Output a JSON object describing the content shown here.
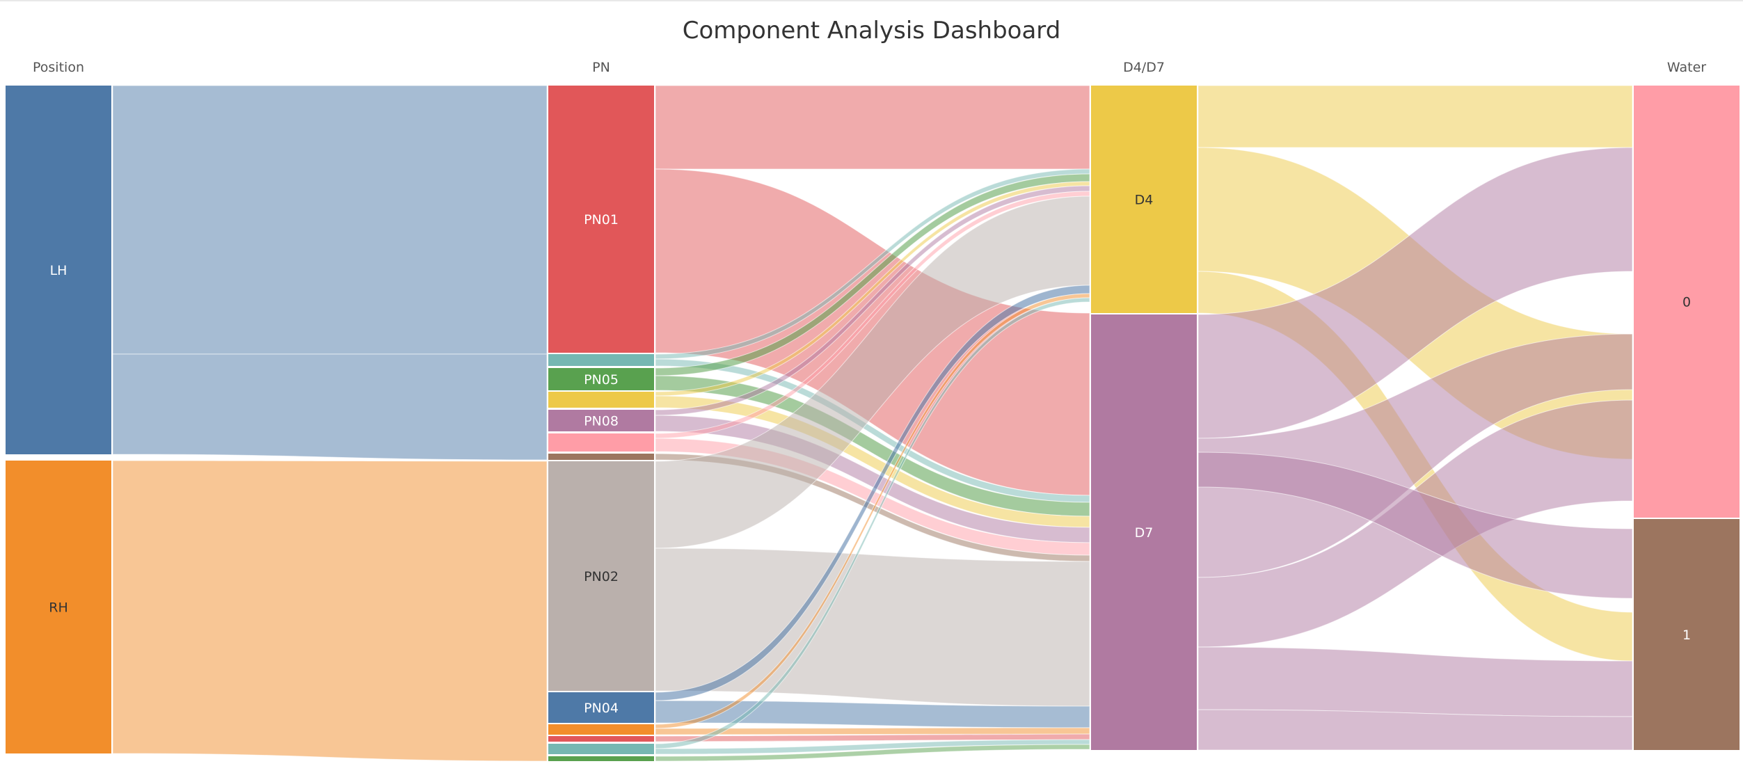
{
  "title": "Component Analysis Dashboard",
  "columns": [
    "Position",
    "PN",
    "D4/D7",
    "Water"
  ],
  "colors": {
    "LH": "#4e79a7",
    "RH": "#f28e2b",
    "PN01": "#e15759",
    "PN02": "#bab0ac",
    "PN04": "#4e79a7",
    "PN05": "#59a14f",
    "PN08": "#b07aa1",
    "D4": "#edc948",
    "D7": "#b07aa1",
    "0": "#ff9da7",
    "1": "#9c755f",
    "misc_teal": "#76b7b2",
    "misc_yellow": "#edc948",
    "misc_pink": "#ff9da7",
    "misc_brown": "#9c755f",
    "misc_orange": "#f28e2b",
    "misc_red": "#e15759",
    "misc_green": "#59a14f"
  },
  "nodes": {
    "position": [
      {
        "id": "LH",
        "label": "LH"
      },
      {
        "id": "RH",
        "label": "RH"
      }
    ],
    "pn": [
      {
        "id": "PN01",
        "label": "PN01"
      },
      {
        "id": "PN05",
        "label": "PN05"
      },
      {
        "id": "PN08",
        "label": "PN08"
      },
      {
        "id": "PN02",
        "label": "PN02"
      },
      {
        "id": "PN04",
        "label": "PN04"
      }
    ],
    "d": [
      {
        "id": "D4",
        "label": "D4"
      },
      {
        "id": "D7",
        "label": "D7"
      }
    ],
    "water": [
      {
        "id": "0",
        "label": "0"
      },
      {
        "id": "1",
        "label": "1"
      }
    ]
  }
}
